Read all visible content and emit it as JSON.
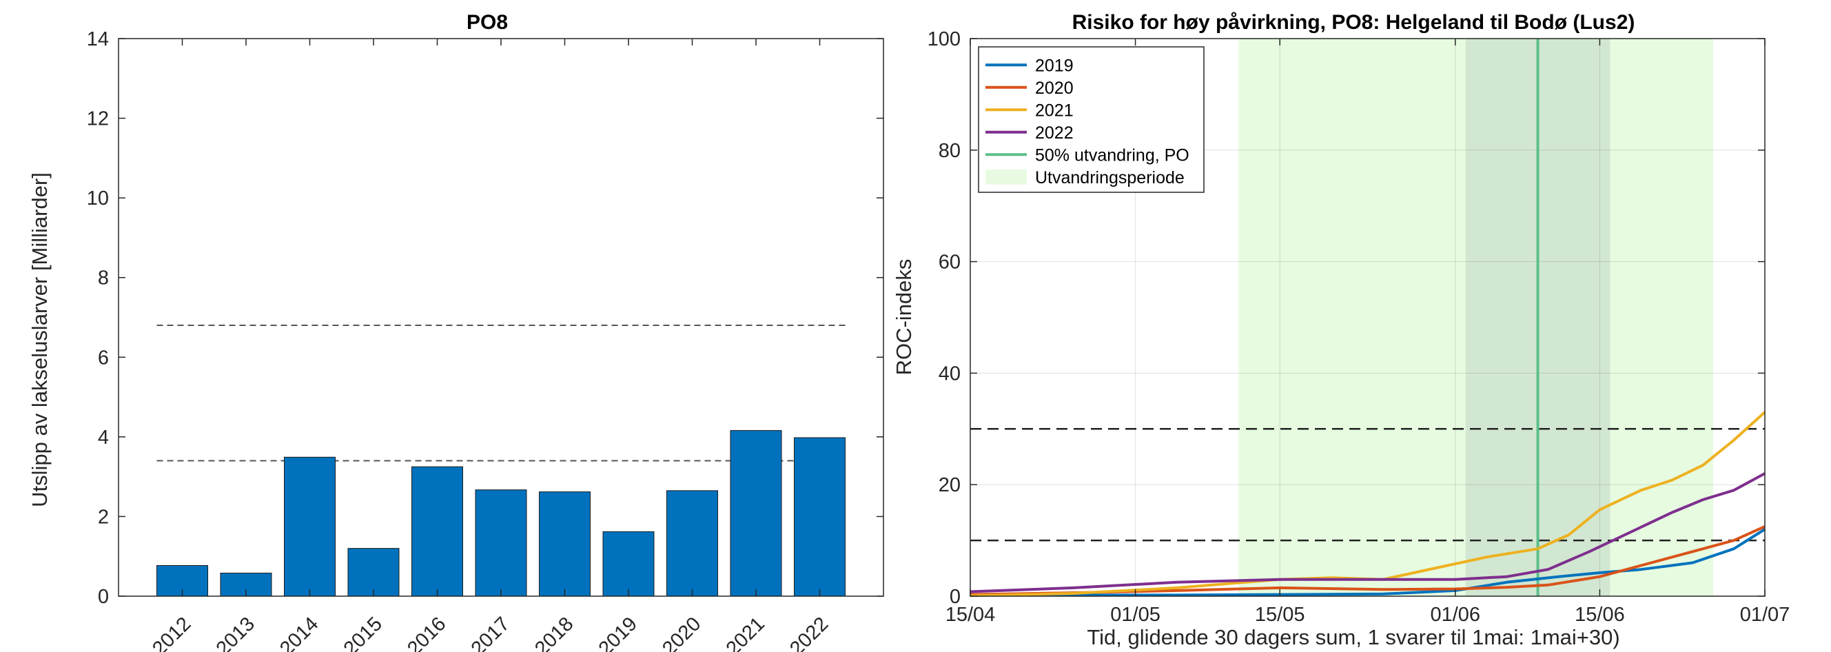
{
  "chart_data": [
    {
      "type": "bar",
      "title": "PO8",
      "xlabel": "",
      "ylabel": "Utslipp av lakseluslarver [Milliarder]",
      "categories": [
        "2012",
        "2013",
        "2014",
        "2015",
        "2016",
        "2017",
        "2018",
        "2019",
        "2020",
        "2021",
        "2022"
      ],
      "values": [
        0.77,
        0.58,
        3.49,
        1.2,
        3.25,
        2.67,
        2.62,
        1.62,
        2.65,
        4.16,
        3.98
      ],
      "ylim": [
        0,
        14
      ],
      "yticks": [
        0,
        2,
        4,
        6,
        8,
        10,
        12,
        14
      ],
      "reference_lines": [
        3.4,
        6.8
      ],
      "bar_color": "#0072BD",
      "grid": false
    },
    {
      "type": "line",
      "title": "Risiko for høy påvirkning, PO8: Helgeland til Bodø (Lus2)",
      "xlabel": "Tid, glidende 30 dagers sum, 1 svarer til 1mai: 1mai+30)",
      "ylabel": "ROC-indeks",
      "xticks": [
        "15/04",
        "01/05",
        "15/05",
        "01/06",
        "15/06",
        "01/07"
      ],
      "xtick_days": [
        0,
        16,
        30,
        47,
        61,
        77
      ],
      "xlim_days": [
        0,
        77
      ],
      "ylim": [
        0,
        100
      ],
      "yticks": [
        0,
        20,
        40,
        60,
        80,
        100
      ],
      "grid": true,
      "legend_position": "top-left",
      "hlines": [
        10,
        30
      ],
      "outmigration_period_days": [
        26,
        72
      ],
      "outmigration_core_days": [
        48,
        62
      ],
      "fifty_percent_outmigration_day": 55,
      "series": [
        {
          "name": "2019",
          "color": "#0072BD",
          "x": [
            0,
            10,
            20,
            30,
            40,
            47,
            52,
            57,
            61,
            65,
            70,
            74,
            77
          ],
          "y": [
            0.2,
            0.2,
            0.2,
            0.3,
            0.4,
            1.0,
            2.5,
            3.5,
            4.2,
            4.8,
            6.0,
            8.5,
            12.0
          ]
        },
        {
          "name": "2020",
          "color": "#D95319",
          "x": [
            0,
            10,
            20,
            30,
            40,
            47,
            52,
            56,
            61,
            65,
            70,
            74,
            77
          ],
          "y": [
            0.3,
            0.6,
            1.0,
            1.5,
            1.2,
            1.3,
            1.6,
            2.0,
            3.5,
            5.5,
            8.0,
            10.0,
            12.5
          ]
        },
        {
          "name": "2021",
          "color": "#EDB120",
          "x": [
            0,
            10,
            20,
            30,
            35,
            40,
            45,
            50,
            55,
            58,
            61,
            65,
            68,
            71,
            74,
            77
          ],
          "y": [
            0.1,
            0.5,
            1.5,
            3.0,
            3.3,
            3.0,
            5.0,
            7.0,
            8.5,
            11.0,
            15.5,
            19.0,
            20.8,
            23.5,
            28.0,
            33.0
          ]
        },
        {
          "name": "2022",
          "color": "#7E2F8E",
          "x": [
            0,
            10,
            20,
            30,
            40,
            47,
            52,
            56,
            60,
            64,
            68,
            71,
            74,
            77
          ],
          "y": [
            0.8,
            1.5,
            2.5,
            3.0,
            3.0,
            3.0,
            3.5,
            4.8,
            8.0,
            11.5,
            15.0,
            17.3,
            19.0,
            22.0
          ]
        }
      ],
      "legend": [
        {
          "label": "2019",
          "color": "#0072BD",
          "kind": "line"
        },
        {
          "label": "2020",
          "color": "#D95319",
          "kind": "line"
        },
        {
          "label": "2021",
          "color": "#EDB120",
          "kind": "line"
        },
        {
          "label": "2022",
          "color": "#7E2F8E",
          "kind": "line"
        },
        {
          "label": "50% utvandring, PO",
          "color": "#5CBF8A",
          "kind": "line"
        },
        {
          "label": "Utvandringsperiode",
          "color": "#E8FBE2",
          "kind": "patch"
        }
      ],
      "colors": {
        "period_fill": "#E6FBE0",
        "core_fill": "#D2E7D1",
        "median_line": "#5CBF8A"
      }
    }
  ]
}
